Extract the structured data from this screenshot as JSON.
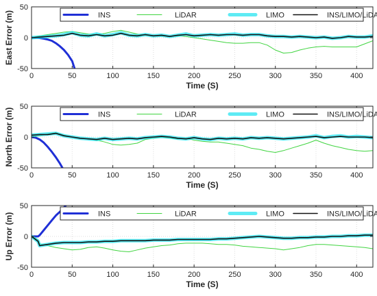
{
  "chart_data": [
    {
      "type": "line",
      "ylabel": "East Error (m)",
      "xlabel": "Time (S)",
      "xlim": [
        0,
        420
      ],
      "ylim": [
        -50,
        50
      ],
      "xticks": [
        0,
        50,
        100,
        150,
        200,
        250,
        300,
        350,
        400
      ],
      "yticks": [
        -50,
        0,
        50
      ],
      "grid": true,
      "legend": "top, horizontal",
      "series": [
        {
          "name": "INS",
          "color": "#1f2fd6",
          "x": [
            0,
            5,
            10,
            15,
            20,
            25,
            30,
            35,
            40,
            45,
            50,
            53
          ],
          "y": [
            0,
            0,
            -0.5,
            -1.5,
            -3,
            -5,
            -9,
            -14,
            -20,
            -28,
            -38,
            -50
          ]
        },
        {
          "name": "LiDAR",
          "color": "#3fd43f",
          "x": [
            0,
            10,
            20,
            30,
            40,
            50,
            60,
            70,
            80,
            90,
            100,
            110,
            120,
            130,
            140,
            150,
            160,
            170,
            180,
            190,
            200,
            210,
            220,
            230,
            240,
            250,
            260,
            270,
            280,
            290,
            300,
            310,
            320,
            330,
            340,
            350,
            360,
            370,
            380,
            390,
            400,
            410,
            420
          ],
          "y": [
            0,
            3,
            5,
            7,
            9,
            10,
            8,
            6,
            5,
            7,
            10,
            12,
            9,
            6,
            4,
            3,
            3,
            2,
            3,
            2,
            0,
            -2,
            -4,
            -6,
            -8,
            -9,
            -9,
            -8,
            -8,
            -12,
            -20,
            -25,
            -24,
            -20,
            -17,
            -15,
            -14,
            -15,
            -15,
            -15,
            -15,
            -10,
            -5
          ]
        },
        {
          "name": "LIMO",
          "color": "#28e4f0",
          "x": [
            0,
            10,
            20,
            30,
            40,
            50,
            60,
            70,
            80,
            90,
            100,
            110,
            120,
            130,
            140,
            150,
            160,
            170,
            180,
            190,
            200,
            210,
            220,
            230,
            240,
            250,
            260,
            270,
            280,
            290,
            300,
            310,
            320,
            330,
            340,
            350,
            360,
            370,
            380,
            390,
            400,
            410,
            420
          ],
          "y": [
            0,
            1,
            2,
            3,
            5,
            8,
            4,
            3,
            6,
            3,
            5,
            8,
            4,
            3,
            5,
            3,
            4,
            2,
            4,
            6,
            3,
            4,
            5,
            4,
            5,
            6,
            4,
            5,
            5,
            3,
            2,
            2,
            1,
            2,
            1,
            0,
            1,
            -1,
            0,
            2,
            1,
            1,
            3
          ]
        },
        {
          "name": "INS/LIMO/LiDAR",
          "color": "#111111",
          "x": [
            0,
            10,
            20,
            30,
            40,
            50,
            60,
            70,
            80,
            90,
            100,
            110,
            120,
            130,
            140,
            150,
            160,
            170,
            180,
            190,
            200,
            210,
            220,
            230,
            240,
            250,
            260,
            270,
            280,
            290,
            300,
            310,
            320,
            330,
            340,
            350,
            360,
            370,
            380,
            390,
            400,
            410,
            420
          ],
          "y": [
            0,
            1,
            2,
            3,
            4,
            7,
            4,
            3,
            5,
            3,
            4,
            7,
            4,
            3,
            5,
            3,
            4,
            2,
            4,
            5,
            3,
            4,
            5,
            4,
            5,
            5,
            4,
            5,
            5,
            3,
            2,
            2,
            1,
            2,
            1,
            0,
            1,
            -1,
            0,
            2,
            1,
            1,
            2
          ]
        }
      ]
    },
    {
      "type": "line",
      "ylabel": "North Error (m)",
      "xlabel": "Time (S)",
      "xlim": [
        0,
        420
      ],
      "ylim": [
        -50,
        50
      ],
      "xticks": [
        0,
        50,
        100,
        150,
        200,
        250,
        300,
        350,
        400
      ],
      "yticks": [
        -50,
        0,
        50
      ],
      "grid": true,
      "legend": "top, horizontal",
      "series": [
        {
          "name": "INS",
          "color": "#1f2fd6",
          "x": [
            0,
            5,
            10,
            15,
            20,
            25,
            30,
            35,
            38
          ],
          "y": [
            0,
            -1,
            -4,
            -9,
            -16,
            -24,
            -33,
            -43,
            -50
          ]
        },
        {
          "name": "LiDAR",
          "color": "#3fd43f",
          "x": [
            0,
            10,
            20,
            30,
            40,
            50,
            60,
            70,
            80,
            90,
            100,
            110,
            120,
            130,
            140,
            150,
            160,
            170,
            180,
            190,
            200,
            210,
            220,
            230,
            240,
            250,
            260,
            270,
            280,
            290,
            300,
            310,
            320,
            330,
            340,
            350,
            360,
            370,
            380,
            390,
            400,
            410,
            420
          ],
          "y": [
            0,
            2,
            5,
            7,
            3,
            0,
            -2,
            -3,
            -5,
            -8,
            -12,
            -13,
            -12,
            -10,
            -4,
            -2,
            0,
            -2,
            -3,
            -2,
            -5,
            -7,
            -8,
            -8,
            -10,
            -12,
            -14,
            -18,
            -20,
            -23,
            -25,
            -22,
            -18,
            -14,
            -10,
            -5,
            -10,
            -14,
            -17,
            -20,
            -22,
            -23,
            -22
          ]
        },
        {
          "name": "LIMO",
          "color": "#28e4f0",
          "x": [
            0,
            10,
            20,
            30,
            40,
            50,
            60,
            70,
            80,
            90,
            100,
            110,
            120,
            130,
            140,
            150,
            160,
            170,
            180,
            190,
            200,
            210,
            220,
            230,
            240,
            250,
            260,
            270,
            280,
            290,
            300,
            310,
            320,
            330,
            340,
            350,
            360,
            370,
            380,
            390,
            400,
            410,
            420
          ],
          "y": [
            3,
            4,
            5,
            6,
            2,
            0,
            -2,
            -3,
            -4,
            -2,
            -4,
            -3,
            -2,
            -3,
            -1,
            0,
            1,
            0,
            -2,
            -3,
            -1,
            -3,
            -4,
            -2,
            -3,
            -2,
            -3,
            -1,
            -2,
            -1,
            -2,
            -3,
            -2,
            -1,
            0,
            2,
            -1,
            1,
            2,
            0,
            1,
            0,
            -1
          ]
        },
        {
          "name": "INS/LIMO/LiDAR",
          "color": "#111111",
          "x": [
            0,
            10,
            20,
            30,
            40,
            50,
            60,
            70,
            80,
            90,
            100,
            110,
            120,
            130,
            140,
            150,
            160,
            170,
            180,
            190,
            200,
            210,
            220,
            230,
            240,
            250,
            260,
            270,
            280,
            290,
            300,
            310,
            320,
            330,
            340,
            350,
            360,
            370,
            380,
            390,
            400,
            410,
            420
          ],
          "y": [
            3,
            4,
            4,
            6,
            2,
            0,
            -2,
            -3,
            -4,
            -2,
            -4,
            -3,
            -2,
            -3,
            -1,
            0,
            1,
            0,
            -2,
            -3,
            -1,
            -3,
            -4,
            -2,
            -3,
            -2,
            -3,
            -1,
            -2,
            -1,
            -2,
            -3,
            -2,
            -1,
            0,
            1,
            -1,
            0,
            1,
            0,
            0,
            0,
            -1
          ]
        }
      ]
    },
    {
      "type": "line",
      "ylabel": "Up Error (m)",
      "xlabel": "Time (S)",
      "xlim": [
        0,
        420
      ],
      "ylim": [
        -50,
        50
      ],
      "xticks": [
        0,
        50,
        100,
        150,
        200,
        250,
        300,
        350,
        400
      ],
      "yticks": [
        -50,
        0,
        50
      ],
      "grid": true,
      "legend": "top, horizontal",
      "series": [
        {
          "name": "INS",
          "color": "#1f2fd6",
          "x": [
            0,
            8,
            10,
            15,
            20,
            25,
            30,
            35,
            40,
            42
          ],
          "y": [
            0,
            0,
            2,
            10,
            18,
            26,
            34,
            40,
            47,
            50
          ]
        },
        {
          "name": "LiDAR",
          "color": "#3fd43f",
          "x": [
            0,
            8,
            10,
            20,
            30,
            40,
            50,
            60,
            70,
            80,
            90,
            100,
            110,
            120,
            130,
            140,
            150,
            160,
            170,
            180,
            190,
            200,
            210,
            220,
            230,
            240,
            250,
            260,
            270,
            280,
            290,
            300,
            310,
            320,
            330,
            340,
            350,
            360,
            370,
            380,
            390,
            400,
            410,
            420
          ],
          "y": [
            0,
            -5,
            -12,
            -15,
            -18,
            -20,
            -22,
            -21,
            -18,
            -17,
            -19,
            -22,
            -24,
            -25,
            -22,
            -19,
            -17,
            -15,
            -14,
            -12,
            -11,
            -11,
            -11,
            -12,
            -13,
            -13,
            -14,
            -16,
            -17,
            -18,
            -19,
            -20,
            -22,
            -20,
            -18,
            -15,
            -13,
            -13,
            -14,
            -15,
            -16,
            -17,
            -18,
            -20
          ]
        },
        {
          "name": "LIMO",
          "color": "#28e4f0",
          "x": [
            0,
            8,
            10,
            20,
            30,
            40,
            50,
            60,
            70,
            80,
            90,
            100,
            110,
            120,
            130,
            140,
            150,
            160,
            170,
            180,
            190,
            200,
            210,
            220,
            230,
            240,
            250,
            260,
            270,
            280,
            290,
            300,
            310,
            320,
            330,
            340,
            350,
            360,
            370,
            380,
            390,
            400,
            410,
            420
          ],
          "y": [
            0,
            -8,
            -15,
            -13,
            -11,
            -10,
            -10,
            -10,
            -9,
            -9,
            -8,
            -8,
            -7,
            -7,
            -7,
            -7,
            -6,
            -6,
            -6,
            -5,
            -5,
            -5,
            -5,
            -5,
            -4,
            -4,
            -3,
            -2,
            -1,
            0,
            -1,
            -2,
            -3,
            -3,
            -2,
            -2,
            -1,
            -1,
            0,
            0,
            1,
            1,
            2,
            2
          ]
        },
        {
          "name": "INS/LIMO/LiDAR",
          "color": "#111111",
          "x": [
            0,
            8,
            10,
            20,
            30,
            40,
            50,
            60,
            70,
            80,
            90,
            100,
            110,
            120,
            130,
            140,
            150,
            160,
            170,
            180,
            190,
            200,
            210,
            220,
            230,
            240,
            250,
            260,
            270,
            280,
            290,
            300,
            310,
            320,
            330,
            340,
            350,
            360,
            370,
            380,
            390,
            400,
            410,
            420
          ],
          "y": [
            0,
            -8,
            -15,
            -13,
            -11,
            -10,
            -10,
            -10,
            -9,
            -9,
            -8,
            -8,
            -7,
            -7,
            -7,
            -7,
            -6,
            -6,
            -6,
            -5,
            -5,
            -5,
            -5,
            -5,
            -4,
            -4,
            -3,
            -2,
            -1,
            0,
            -1,
            -2,
            -3,
            -3,
            -2,
            -2,
            -1,
            -1,
            0,
            0,
            1,
            1,
            2,
            2
          ]
        }
      ]
    }
  ]
}
